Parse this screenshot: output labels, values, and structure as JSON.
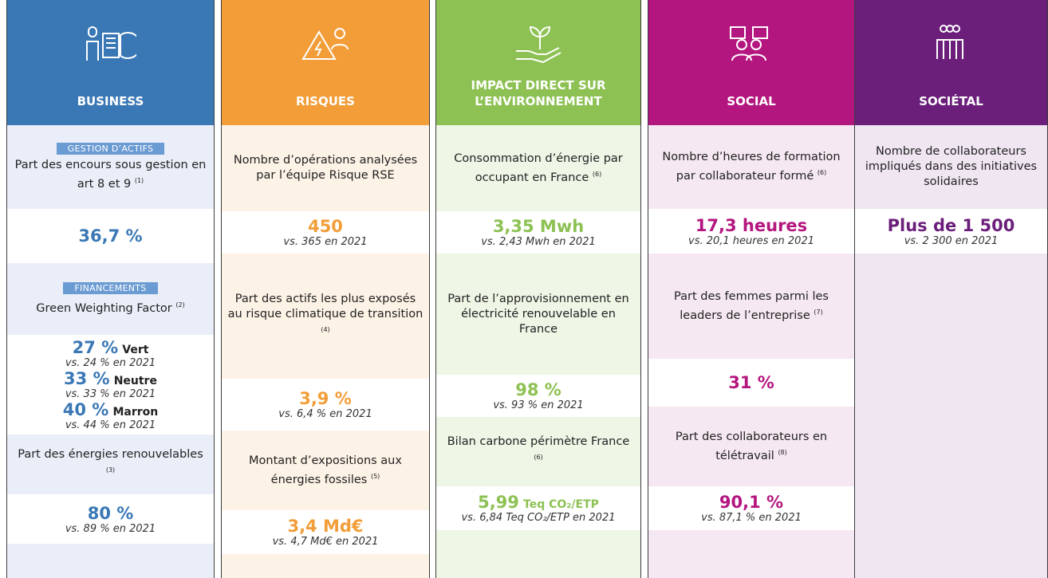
{
  "columns": [
    {
      "title": "BUSINESS",
      "blocks": [
        {
          "tag": "GESTION D’ACTIFS",
          "text": "Part des encours sous gestion en art 8 et 9",
          "note": "(1)"
        },
        {
          "value": "36,7 %"
        },
        {
          "tag": "FINANCEMENTS",
          "text": "Green Weighting Factor",
          "note": "(2)"
        },
        {
          "items": [
            {
              "value": "27 %",
              "unit": "Vert",
              "compare": "vs. 24 % en 2021"
            },
            {
              "value": "33 %",
              "unit": "Neutre",
              "compare": "vs. 33 % en 2021"
            },
            {
              "value": "40 %",
              "unit": "Marron",
              "compare": "vs. 44 % en 2021"
            }
          ]
        },
        {
          "text": "Part des énergies renouvelables",
          "note": "(3)"
        },
        {
          "value": "80 %",
          "compare": "vs. 89 % en 2021"
        }
      ]
    },
    {
      "title": "RISQUES",
      "blocks": [
        {
          "text": "Nombre d’opérations analysées par l’équipe Risque RSE"
        },
        {
          "value": "450",
          "compare": "vs. 365 en 2021"
        },
        {
          "text": "Part des actifs les plus exposés au risque climatique de transition",
          "note": "(4)"
        },
        {
          "value": "3,9 %",
          "compare": "vs. 6,4 % en 2021"
        },
        {
          "text": "Montant d’expositions aux énergies fossiles",
          "note": "(5)"
        },
        {
          "value": "3,4 Md€",
          "compare": "vs. 4,7 Md€ en 2021"
        }
      ]
    },
    {
      "title": "IMPACT DIRECT SUR L’ENVIRONNEMENT",
      "blocks": [
        {
          "text": "Consommation d’énergie par occupant en France",
          "note": "(6)"
        },
        {
          "value": "3,35 Mwh",
          "compare": "vs. 2,43 Mwh en 2021"
        },
        {
          "text": "Part de l’approvisionnement en électricité renouvelable en France"
        },
        {
          "value": "98 %",
          "compare": "vs. 93 % en 2021"
        },
        {
          "text": "Bilan carbone périmètre France",
          "note": "(6)"
        },
        {
          "value": "5,99",
          "unit": "Teq CO₂/ETP",
          "compare": "vs. 6,84 Teq CO₂/ETP en 2021"
        }
      ]
    },
    {
      "title": "SOCIAL",
      "blocks": [
        {
          "text": "Nombre d’heures de formation par collaborateur formé",
          "note": "(6)"
        },
        {
          "value": "17,3 heures",
          "compare": "vs. 20,1 heures en 2021"
        },
        {
          "text": "Part des femmes parmi les leaders de l’entreprise",
          "note": "(7)"
        },
        {
          "value": "31 %"
        },
        {
          "text": "Part des collaborateurs en télétravail",
          "note": "(8)"
        },
        {
          "value": "90,1 %",
          "compare": "vs. 87,1 % en 2021"
        }
      ]
    },
    {
      "title": "SOCIÉTAL",
      "blocks": [
        {
          "text": "Nombre de collaborateurs impliqués dans des initiatives solidaires"
        },
        {
          "value": "Plus de 1 500",
          "compare": "vs. 2 300 en 2021"
        }
      ]
    }
  ]
}
